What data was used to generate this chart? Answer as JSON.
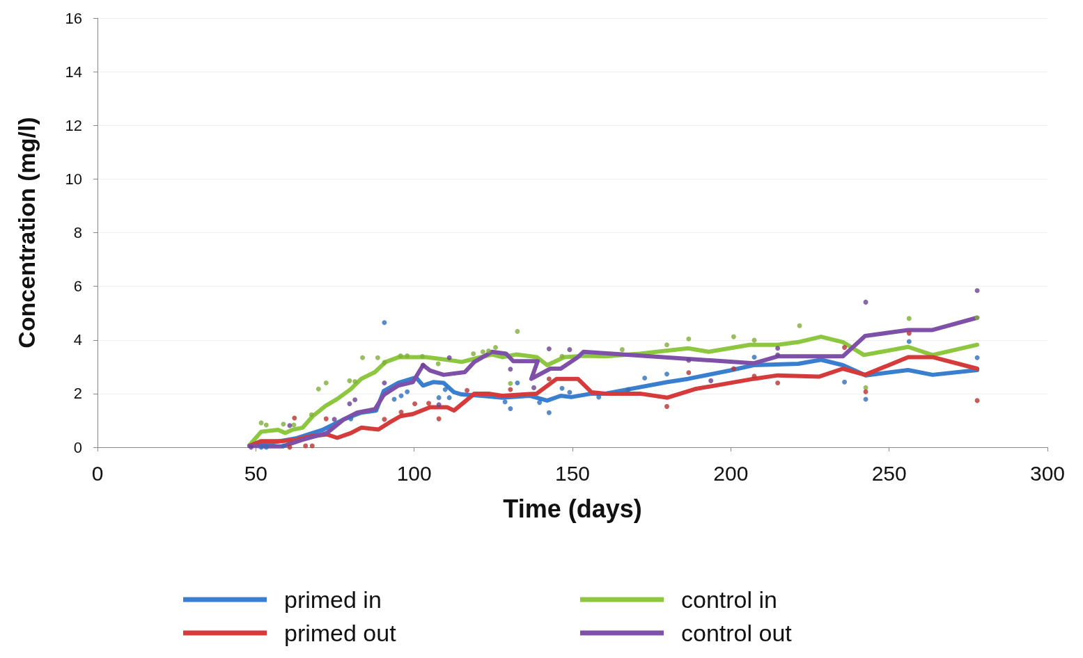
{
  "chart_data": {
    "type": "line",
    "xlabel": "Time (days)",
    "ylabel": "Concentration (mg/l)",
    "xlim": [
      0,
      300
    ],
    "xticks": [
      0,
      50,
      100,
      150,
      200,
      250,
      300
    ],
    "ylim": [
      0,
      16
    ],
    "yticks": [
      0,
      2,
      4,
      6,
      8,
      10,
      12,
      14,
      16
    ],
    "grid": "y",
    "legend": "bottom",
    "line_style": "solid",
    "series": [
      {
        "name": "primed in",
        "type": "line",
        "marker": "none",
        "color": "#3a7fcf",
        "x": [
          48,
          54,
          62.6,
          71.3,
          77.8,
          83.3,
          88,
          90.4,
          95,
          100.6,
          102.8,
          106,
          109.3,
          112.6,
          115,
          121.3,
          127.8,
          136.5,
          142,
          146.3,
          149.6,
          156,
          160.4,
          180,
          186.5,
          199.6,
          207.2,
          221.3,
          228.5,
          235.4,
          242.6,
          256,
          263.7,
          277.8
        ],
        "values": [
          0.05,
          0.15,
          0.33,
          0.66,
          1.04,
          1.29,
          1.37,
          2.1,
          2.4,
          2.6,
          2.3,
          2.43,
          2.4,
          2.05,
          1.97,
          1.92,
          1.85,
          1.92,
          1.74,
          1.92,
          1.87,
          2.0,
          2.0,
          2.43,
          2.55,
          2.86,
          3.06,
          3.11,
          3.26,
          3.06,
          2.68,
          2.88,
          2.7,
          2.88
        ]
      },
      {
        "name": "control in",
        "type": "line",
        "marker": "none",
        "color": "#8dc63f",
        "x": [
          48,
          51.7,
          57,
          59.3,
          61.5,
          64.8,
          68,
          72,
          75.7,
          80,
          83.3,
          87.6,
          91,
          95.2,
          99.6,
          103.9,
          110.4,
          115,
          119,
          124.6,
          127.8,
          132.2,
          138.7,
          142,
          147.4,
          154,
          160.4,
          171.3,
          186.5,
          193,
          206,
          214.8,
          221.3,
          228.5,
          235.4,
          242,
          256,
          263.7,
          277.8
        ],
        "values": [
          0.08,
          0.58,
          0.65,
          0.53,
          0.65,
          0.73,
          1.16,
          1.54,
          1.8,
          2.17,
          2.55,
          2.8,
          3.18,
          3.36,
          3.36,
          3.36,
          3.26,
          3.18,
          3.3,
          3.46,
          3.36,
          3.46,
          3.36,
          3.06,
          3.36,
          3.41,
          3.39,
          3.49,
          3.69,
          3.56,
          3.82,
          3.82,
          3.92,
          4.12,
          3.92,
          3.44,
          3.74,
          3.44,
          3.82
        ]
      },
      {
        "name": "primed out",
        "type": "line",
        "marker": "none",
        "color": "#d63b3b",
        "x": [
          48,
          51.7,
          58.3,
          62.6,
          67,
          72.4,
          75.7,
          80,
          83.3,
          88.7,
          92,
          95.7,
          99.6,
          105,
          110.4,
          112.6,
          117,
          119,
          123.5,
          127.8,
          138.7,
          145,
          151.7,
          156,
          160.4,
          171.3,
          180,
          188.7,
          207.2,
          214.8,
          227.8,
          235.4,
          242.4,
          256,
          263.7,
          277.8
        ],
        "values": [
          0.05,
          0.23,
          0.23,
          0.28,
          0.4,
          0.48,
          0.35,
          0.53,
          0.73,
          0.66,
          0.91,
          1.16,
          1.24,
          1.49,
          1.49,
          1.37,
          1.8,
          2.0,
          2.0,
          1.92,
          2.0,
          2.55,
          2.55,
          2.05,
          2.0,
          2.0,
          1.85,
          2.17,
          2.55,
          2.68,
          2.63,
          2.93,
          2.7,
          3.36,
          3.36,
          2.93
        ]
      },
      {
        "name": "control out",
        "type": "line",
        "marker": "none",
        "color": "#7e50a8",
        "x": [
          48,
          54,
          58.3,
          64.8,
          72.4,
          77.8,
          82,
          87.6,
          90.4,
          95,
          99.6,
          102.8,
          105,
          109.3,
          116,
          119,
          124.6,
          129,
          131.3,
          139,
          137,
          143,
          146.3,
          151.7,
          153.5,
          207.2,
          214.8,
          235.4,
          242.4,
          256,
          263.7,
          277.8
        ],
        "values": [
          0.05,
          0.03,
          0.03,
          0.28,
          0.53,
          1.04,
          1.29,
          1.42,
          1.95,
          2.3,
          2.43,
          3.06,
          2.86,
          2.7,
          2.8,
          3.18,
          3.56,
          3.49,
          3.21,
          3.21,
          2.55,
          2.93,
          2.93,
          3.36,
          3.56,
          3.13,
          3.39,
          3.39,
          4.15,
          4.37,
          4.37,
          4.83
        ]
      },
      {
        "type": "scatter",
        "marker": "circle",
        "color": "#2f6fb8",
        "x": [
          51.7,
          53.3,
          58.7,
          80,
          90.6,
          93.7,
          95.9,
          97.8,
          107.8,
          109.8,
          111.1,
          128.7,
          130.4,
          132.6,
          139.6,
          142.6,
          146.7,
          149.1,
          158.3,
          167.6,
          172.8,
          179.8,
          207.4,
          235.9,
          242.6,
          256.3,
          277.8
        ],
        "values": [
          0,
          0,
          0.05,
          1.06,
          4.65,
          1.79,
          1.92,
          2.07,
          1.85,
          2.15,
          1.85,
          1.69,
          1.44,
          2.4,
          1.67,
          1.29,
          2.2,
          2.05,
          1.87,
          2.15,
          2.58,
          2.73,
          3.36,
          2.43,
          1.79,
          3.94,
          3.34
        ]
      },
      {
        "type": "scatter",
        "marker": "circle",
        "color": "#7fae3a",
        "x": [
          51.7,
          53.3,
          58.7,
          62,
          67.6,
          69.8,
          72.2,
          79.6,
          81.3,
          83.7,
          88.5,
          90.6,
          95.7,
          97.8,
          102.6,
          107.6,
          118.7,
          121.7,
          123.5,
          125.7,
          130.4,
          132.6,
          146.7,
          165.7,
          179.8,
          186.7,
          200.9,
          207.4,
          221.7,
          242.6,
          256.3,
          277.8
        ],
        "values": [
          0.91,
          0.83,
          0.86,
          0.83,
          1.21,
          2.17,
          2.4,
          2.48,
          2.45,
          3.34,
          3.34,
          3.16,
          3.41,
          3.41,
          3.39,
          3.11,
          3.49,
          3.56,
          3.59,
          3.72,
          2.38,
          4.32,
          3.39,
          3.64,
          3.82,
          4.04,
          4.12,
          3.99,
          4.53,
          2.22,
          4.8,
          4.83
        ]
      },
      {
        "type": "scatter",
        "marker": "circle",
        "color": "#b83232",
        "x": [
          60.7,
          62.2,
          65.7,
          67.8,
          72.2,
          90.6,
          95.9,
          100.2,
          104.6,
          107.8,
          116.7,
          130.4,
          142.6,
          179.8,
          186.7,
          200.9,
          207.4,
          214.8,
          235.9,
          242.6,
          256.3,
          277.8
        ],
        "values": [
          0,
          1.09,
          0.05,
          0.05,
          1.06,
          1.04,
          1.31,
          1.62,
          1.64,
          1.06,
          2.12,
          2.15,
          2.55,
          1.52,
          2.78,
          2.93,
          2.65,
          2.4,
          3.72,
          2.07,
          4.25,
          1.74
        ]
      },
      {
        "type": "scatter",
        "marker": "circle",
        "color": "#6a4190",
        "x": [
          48.5,
          60.7,
          74.8,
          79.6,
          81.3,
          90.6,
          102.8,
          107.8,
          111.1,
          130.4,
          137.8,
          142.6,
          149.1,
          186.7,
          193.7,
          214.8,
          214.8,
          242.6,
          277.8
        ],
        "values": [
          0,
          0.81,
          1.04,
          1.62,
          1.77,
          2.4,
          3.06,
          1.59,
          3.34,
          2.91,
          2.22,
          3.67,
          3.64,
          3.24,
          2.48,
          3.69,
          3.44,
          5.41,
          5.84
        ]
      }
    ]
  }
}
